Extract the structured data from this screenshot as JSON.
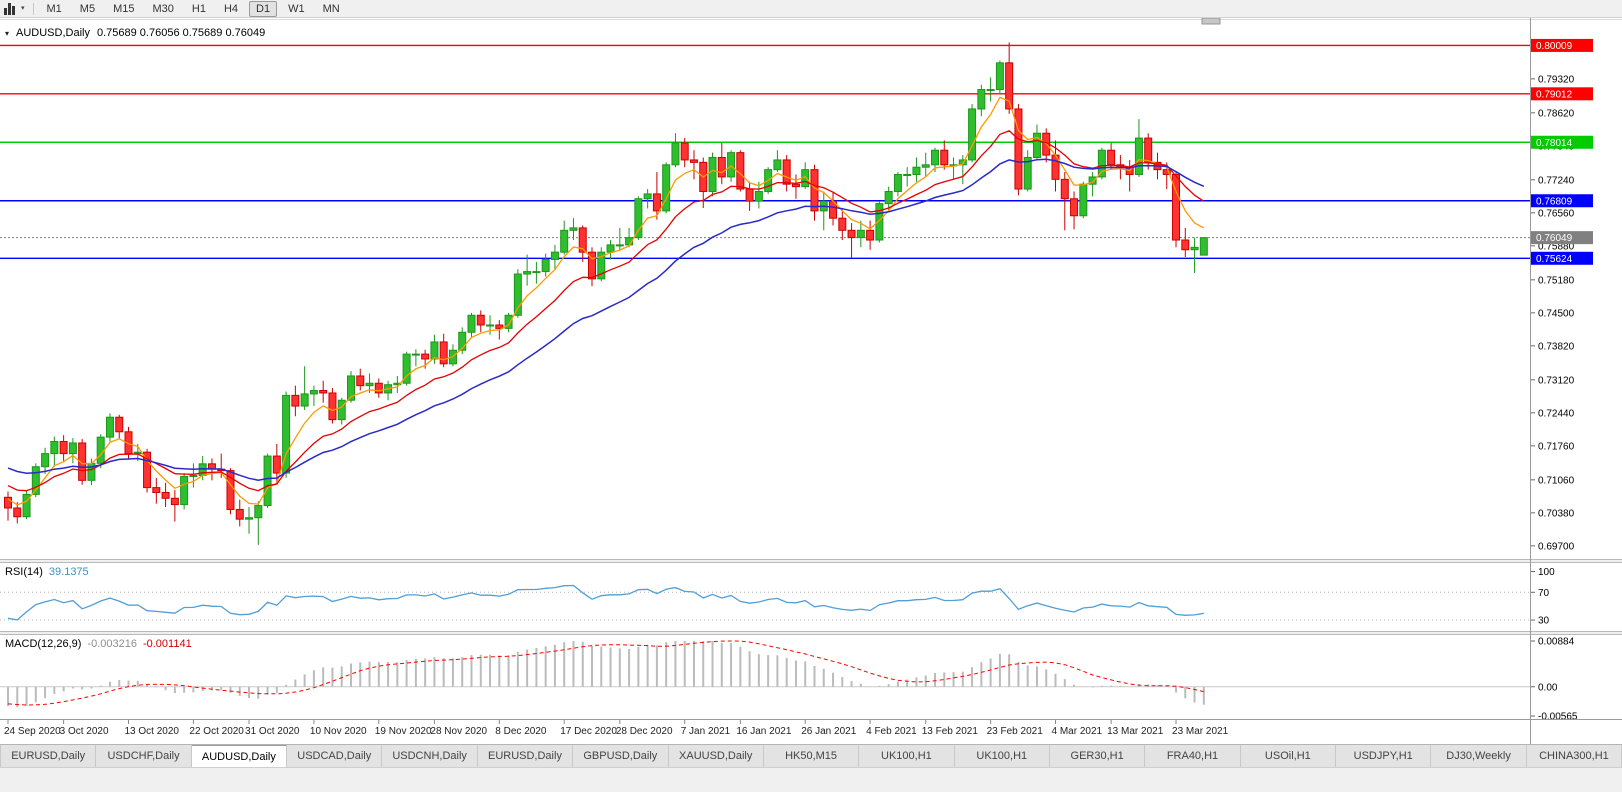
{
  "toolbar": {
    "timeframes": [
      "M1",
      "M5",
      "M15",
      "M30",
      "H1",
      "H4",
      "D1",
      "W1",
      "MN"
    ],
    "active_timeframe": "D1"
  },
  "chart_data": {
    "type": "candlestick",
    "symbol": "AUDUSD",
    "period": "Daily",
    "title_text": "AUDUSD,Daily",
    "ohlc_text": "0.75689 0.76056 0.75689 0.76049",
    "current_price": 0.76049,
    "current_price_label": "0.76049",
    "ylim": [
      0.6945,
      0.8045
    ],
    "y_ticks": [
      "0.79320",
      "0.78620",
      "0.77940",
      "0.77240",
      "0.76560",
      "0.75880",
      "0.75180",
      "0.74500",
      "0.73820",
      "0.73120",
      "0.72440",
      "0.71760",
      "0.71060",
      "0.70380",
      "0.69700"
    ],
    "x_labels": [
      "24 Sep 2020",
      "3 Oct 2020",
      "13 Oct 2020",
      "22 Oct 2020",
      "31 Oct 2020",
      "10 Nov 2020",
      "19 Nov 2020",
      "28 Nov 2020",
      "8 Dec 2020",
      "17 Dec 2020",
      "28 Dec 2020",
      "7 Jan 2021",
      "16 Jan 2021",
      "26 Jan 2021",
      "4 Feb 2021",
      "13 Feb 2021",
      "23 Feb 2021",
      "4 Mar 2021",
      "13 Mar 2021",
      "23 Mar 2021"
    ],
    "x_label_bar_indices": [
      0,
      6,
      13,
      20,
      26,
      33,
      40,
      46,
      53,
      60,
      66,
      73,
      79,
      86,
      93,
      99,
      106,
      113,
      119,
      126
    ],
    "horizontal_levels": [
      {
        "price": 0.80009,
        "label": "0.80009",
        "color": "#FF0000"
      },
      {
        "price": 0.79012,
        "label": "0.79012",
        "color": "#FF0000"
      },
      {
        "price": 0.78014,
        "label": "0.78014",
        "color": "#00CC00"
      },
      {
        "price": 0.76809,
        "label": "0.76809",
        "color": "#0000FF"
      },
      {
        "price": 0.75624,
        "label": "0.75624",
        "color": "#0000FF"
      }
    ],
    "colors": {
      "up_body": "#2EBE2E",
      "up_edge": "#1D961D",
      "down_body": "#FF3232",
      "down_edge": "#CC0000",
      "ma_fast": "#FF9900",
      "ma_mid": "#E60000",
      "ma_slow": "#2929CC",
      "bid_line": "#808080"
    },
    "ohlc": [
      [
        0.707,
        0.7082,
        0.7022,
        0.7048
      ],
      [
        0.7048,
        0.706,
        0.7016,
        0.703
      ],
      [
        0.703,
        0.7085,
        0.7025,
        0.7076
      ],
      [
        0.7076,
        0.714,
        0.707,
        0.7133
      ],
      [
        0.7133,
        0.7172,
        0.7118,
        0.716
      ],
      [
        0.716,
        0.7195,
        0.7133,
        0.7185
      ],
      [
        0.7185,
        0.7198,
        0.7145,
        0.716
      ],
      [
        0.716,
        0.7192,
        0.714,
        0.7182
      ],
      [
        0.7182,
        0.719,
        0.7096,
        0.7105
      ],
      [
        0.7105,
        0.715,
        0.7095,
        0.714
      ],
      [
        0.714,
        0.72,
        0.713,
        0.7194
      ],
      [
        0.7194,
        0.7243,
        0.7185,
        0.7235
      ],
      [
        0.7235,
        0.724,
        0.719,
        0.7205
      ],
      [
        0.7205,
        0.7215,
        0.715,
        0.716
      ],
      [
        0.716,
        0.718,
        0.7145,
        0.7163
      ],
      [
        0.7163,
        0.717,
        0.708,
        0.709
      ],
      [
        0.709,
        0.711,
        0.7057,
        0.708
      ],
      [
        0.708,
        0.71,
        0.705,
        0.7068
      ],
      [
        0.7068,
        0.7085,
        0.702,
        0.7055
      ],
      [
        0.7055,
        0.712,
        0.7045,
        0.7113
      ],
      [
        0.7113,
        0.714,
        0.709,
        0.7115
      ],
      [
        0.7115,
        0.7155,
        0.7105,
        0.7139
      ],
      [
        0.7139,
        0.715,
        0.7105,
        0.7128
      ],
      [
        0.7128,
        0.716,
        0.711,
        0.7125
      ],
      [
        0.7125,
        0.713,
        0.7035,
        0.7045
      ],
      [
        0.7045,
        0.7065,
        0.701,
        0.7025
      ],
      [
        0.7025,
        0.705,
        0.6995,
        0.7028
      ],
      [
        0.7028,
        0.7062,
        0.6972,
        0.7053
      ],
      [
        0.7053,
        0.716,
        0.7048,
        0.7155
      ],
      [
        0.7155,
        0.718,
        0.71,
        0.712
      ],
      [
        0.712,
        0.7288,
        0.711,
        0.728
      ],
      [
        0.728,
        0.73,
        0.7237,
        0.7258
      ],
      [
        0.7258,
        0.734,
        0.725,
        0.7283
      ],
      [
        0.7283,
        0.73,
        0.7258,
        0.729
      ],
      [
        0.729,
        0.731,
        0.7265,
        0.7285
      ],
      [
        0.7285,
        0.7295,
        0.7222,
        0.723
      ],
      [
        0.723,
        0.7275,
        0.722,
        0.727
      ],
      [
        0.727,
        0.733,
        0.7265,
        0.732
      ],
      [
        0.732,
        0.7335,
        0.729,
        0.73
      ],
      [
        0.73,
        0.7325,
        0.7285,
        0.7305
      ],
      [
        0.7305,
        0.7315,
        0.7275,
        0.7285
      ],
      [
        0.7285,
        0.731,
        0.727,
        0.7302
      ],
      [
        0.7302,
        0.732,
        0.7285,
        0.7305
      ],
      [
        0.7305,
        0.737,
        0.73,
        0.7365
      ],
      [
        0.7365,
        0.7375,
        0.734,
        0.7365
      ],
      [
        0.7365,
        0.7374,
        0.7335,
        0.7355
      ],
      [
        0.7355,
        0.7405,
        0.7345,
        0.739
      ],
      [
        0.739,
        0.7407,
        0.7338,
        0.7345
      ],
      [
        0.7345,
        0.7385,
        0.734,
        0.7373
      ],
      [
        0.7373,
        0.742,
        0.7365,
        0.741
      ],
      [
        0.741,
        0.745,
        0.74,
        0.7445
      ],
      [
        0.7445,
        0.7455,
        0.741,
        0.7425
      ],
      [
        0.7425,
        0.7445,
        0.7405,
        0.7425
      ],
      [
        0.7425,
        0.7435,
        0.7395,
        0.7418
      ],
      [
        0.7418,
        0.745,
        0.741,
        0.7445
      ],
      [
        0.7445,
        0.754,
        0.744,
        0.753
      ],
      [
        0.753,
        0.757,
        0.7506,
        0.7535
      ],
      [
        0.7535,
        0.7555,
        0.751,
        0.7535
      ],
      [
        0.7535,
        0.7572,
        0.7525,
        0.756
      ],
      [
        0.756,
        0.759,
        0.754,
        0.7575
      ],
      [
        0.7575,
        0.764,
        0.757,
        0.762
      ],
      [
        0.762,
        0.7645,
        0.76,
        0.7625
      ],
      [
        0.7625,
        0.763,
        0.7555,
        0.7575
      ],
      [
        0.7575,
        0.7585,
        0.7505,
        0.752
      ],
      [
        0.752,
        0.7585,
        0.7515,
        0.7575
      ],
      [
        0.7575,
        0.76,
        0.756,
        0.759
      ],
      [
        0.759,
        0.7625,
        0.758,
        0.759
      ],
      [
        0.759,
        0.7625,
        0.7585,
        0.7605
      ],
      [
        0.7605,
        0.769,
        0.76,
        0.7685
      ],
      [
        0.7685,
        0.7705,
        0.7665,
        0.7695
      ],
      [
        0.7695,
        0.774,
        0.7642,
        0.766
      ],
      [
        0.766,
        0.776,
        0.7655,
        0.7755
      ],
      [
        0.7755,
        0.782,
        0.775,
        0.78
      ],
      [
        0.78,
        0.781,
        0.775,
        0.7765
      ],
      [
        0.7765,
        0.7785,
        0.7725,
        0.776
      ],
      [
        0.776,
        0.777,
        0.7666,
        0.77
      ],
      [
        0.77,
        0.778,
        0.769,
        0.777
      ],
      [
        0.777,
        0.78,
        0.7715,
        0.773
      ],
      [
        0.773,
        0.7785,
        0.772,
        0.778
      ],
      [
        0.778,
        0.7785,
        0.77,
        0.7705
      ],
      [
        0.7705,
        0.772,
        0.766,
        0.768
      ],
      [
        0.768,
        0.772,
        0.7665,
        0.77
      ],
      [
        0.77,
        0.775,
        0.7695,
        0.7745
      ],
      [
        0.7745,
        0.7785,
        0.774,
        0.7765
      ],
      [
        0.7765,
        0.7775,
        0.77,
        0.7715
      ],
      [
        0.7715,
        0.7735,
        0.7685,
        0.771
      ],
      [
        0.771,
        0.776,
        0.7705,
        0.7745
      ],
      [
        0.7745,
        0.7755,
        0.764,
        0.766
      ],
      [
        0.766,
        0.77,
        0.762,
        0.768
      ],
      [
        0.768,
        0.77,
        0.763,
        0.7645
      ],
      [
        0.7645,
        0.7665,
        0.76,
        0.762
      ],
      [
        0.762,
        0.7635,
        0.7563,
        0.7605
      ],
      [
        0.7605,
        0.764,
        0.7585,
        0.762
      ],
      [
        0.762,
        0.764,
        0.758,
        0.76
      ],
      [
        0.76,
        0.768,
        0.7595,
        0.7675
      ],
      [
        0.7675,
        0.771,
        0.766,
        0.77
      ],
      [
        0.77,
        0.774,
        0.769,
        0.7735
      ],
      [
        0.7735,
        0.775,
        0.771,
        0.7735
      ],
      [
        0.7735,
        0.777,
        0.772,
        0.775
      ],
      [
        0.775,
        0.778,
        0.773,
        0.7755
      ],
      [
        0.7755,
        0.779,
        0.774,
        0.7785
      ],
      [
        0.7785,
        0.7805,
        0.7745,
        0.7755
      ],
      [
        0.7755,
        0.777,
        0.7725,
        0.7755
      ],
      [
        0.7755,
        0.7775,
        0.7715,
        0.7765
      ],
      [
        0.7765,
        0.788,
        0.776,
        0.787
      ],
      [
        0.787,
        0.792,
        0.7855,
        0.791
      ],
      [
        0.791,
        0.7935,
        0.7885,
        0.791
      ],
      [
        0.791,
        0.797,
        0.79,
        0.7965
      ],
      [
        0.7965,
        0.8007,
        0.786,
        0.787
      ],
      [
        0.787,
        0.788,
        0.7692,
        0.7705
      ],
      [
        0.7705,
        0.7785,
        0.77,
        0.777
      ],
      [
        0.777,
        0.7838,
        0.7765,
        0.782
      ],
      [
        0.782,
        0.783,
        0.776,
        0.7775
      ],
      [
        0.7775,
        0.7805,
        0.77,
        0.7725
      ],
      [
        0.7725,
        0.774,
        0.762,
        0.7685
      ],
      [
        0.7685,
        0.77,
        0.7622,
        0.765
      ],
      [
        0.765,
        0.772,
        0.7645,
        0.7715
      ],
      [
        0.7715,
        0.774,
        0.769,
        0.773
      ],
      [
        0.773,
        0.779,
        0.7725,
        0.7785
      ],
      [
        0.7785,
        0.78,
        0.7745,
        0.7755
      ],
      [
        0.7755,
        0.7775,
        0.7725,
        0.775
      ],
      [
        0.775,
        0.7765,
        0.77,
        0.7735
      ],
      [
        0.7735,
        0.7849,
        0.773,
        0.781
      ],
      [
        0.781,
        0.782,
        0.7745,
        0.776
      ],
      [
        0.776,
        0.778,
        0.7725,
        0.7745
      ],
      [
        0.7745,
        0.776,
        0.7705,
        0.7735
      ],
      [
        0.7735,
        0.774,
        0.7585,
        0.76
      ],
      [
        0.76,
        0.7625,
        0.7565,
        0.758
      ],
      [
        0.758,
        0.7605,
        0.7532,
        0.7585
      ],
      [
        0.75689,
        0.76056,
        0.75689,
        0.76049
      ]
    ],
    "indicators": {
      "rsi": {
        "title": "RSI(14)",
        "value": "39.1375",
        "line_color": "#4F9FD8",
        "levels": [
          70,
          30
        ],
        "scale_labels": [
          "100",
          "70",
          "30"
        ],
        "scale_values": [
          100,
          70,
          30
        ]
      },
      "macd": {
        "title": "MACD(12,26,9)",
        "value_main": "-0.003216",
        "value_signal": "-0.001141",
        "histogram_color": "#BBBBBB",
        "signal_color": "#FF0000",
        "scale_labels": [
          "0.00884",
          "0.00",
          "-0.00565"
        ],
        "scale_max": 0.00884,
        "scale_min": -0.00565
      }
    }
  },
  "tabs": {
    "items": [
      "EURUSD,Daily",
      "USDCHF,Daily",
      "AUDUSD,Daily",
      "USDCAD,Daily",
      "USDCNH,Daily",
      "EURUSD,Daily",
      "GBPUSD,Daily",
      "XAUUSD,Daily",
      "HK50,M15",
      "UK100,H1",
      "UK100,H1",
      "GER30,H1",
      "FRA40,H1",
      "USOil,H1",
      "USDJPY,H1",
      "DJ30,Weekly",
      "CHINA300,H1"
    ],
    "active_index": 2
  }
}
